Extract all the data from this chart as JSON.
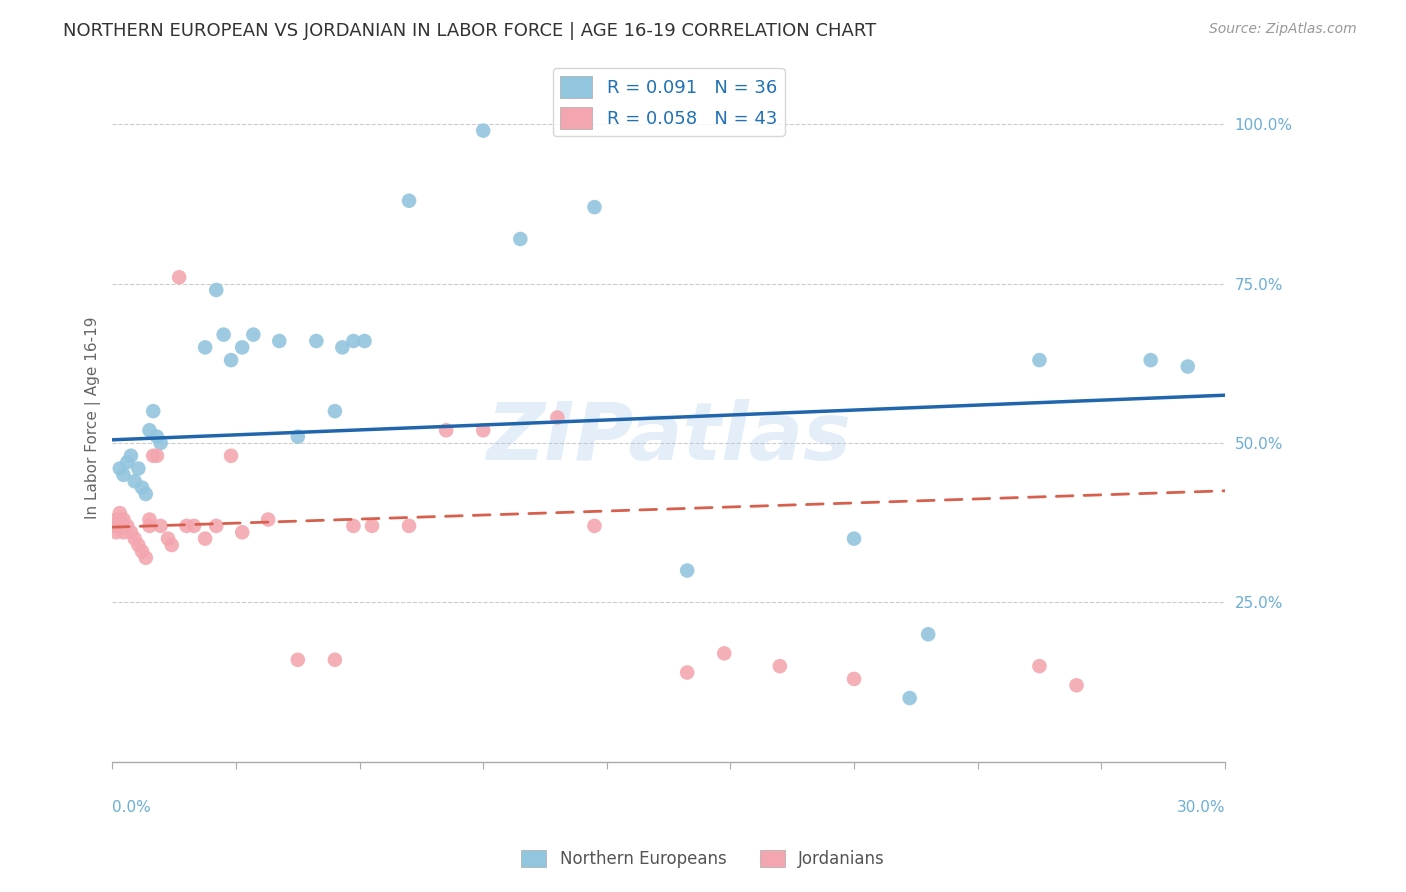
{
  "title": "NORTHERN EUROPEAN VS JORDANIAN IN LABOR FORCE | AGE 16-19 CORRELATION CHART",
  "source": "Source: ZipAtlas.com",
  "ylabel": "In Labor Force | Age 16-19",
  "right_ytick_vals": [
    1.0,
    0.75,
    0.5,
    0.25
  ],
  "xmin": 0.0,
  "xmax": 0.3,
  "ymin": 0.0,
  "ymax": 1.08,
  "blue_color": "#92c5de",
  "pink_color": "#f4a6b0",
  "blue_line_color": "#2166ac",
  "pink_line_color": "#d6604d",
  "watermark": "ZIPatlas",
  "ne_x": [
    0.002,
    0.003,
    0.004,
    0.005,
    0.006,
    0.007,
    0.008,
    0.009,
    0.01,
    0.011,
    0.012,
    0.013,
    0.025,
    0.028,
    0.03,
    0.032,
    0.035,
    0.038,
    0.045,
    0.05,
    0.055,
    0.06,
    0.062,
    0.065,
    0.068,
    0.08,
    0.1,
    0.11,
    0.13,
    0.155,
    0.2,
    0.215,
    0.22,
    0.25,
    0.28,
    0.29
  ],
  "ne_y": [
    0.46,
    0.45,
    0.47,
    0.48,
    0.44,
    0.46,
    0.43,
    0.42,
    0.52,
    0.55,
    0.51,
    0.5,
    0.65,
    0.74,
    0.67,
    0.63,
    0.65,
    0.67,
    0.66,
    0.51,
    0.66,
    0.55,
    0.65,
    0.66,
    0.66,
    0.88,
    0.99,
    0.82,
    0.87,
    0.3,
    0.35,
    0.1,
    0.2,
    0.63,
    0.63,
    0.62
  ],
  "jo_x": [
    0.001,
    0.001,
    0.001,
    0.002,
    0.002,
    0.003,
    0.003,
    0.004,
    0.005,
    0.006,
    0.007,
    0.008,
    0.009,
    0.01,
    0.01,
    0.011,
    0.012,
    0.013,
    0.015,
    0.016,
    0.018,
    0.02,
    0.022,
    0.025,
    0.028,
    0.032,
    0.035,
    0.042,
    0.05,
    0.06,
    0.065,
    0.07,
    0.08,
    0.09,
    0.1,
    0.12,
    0.13,
    0.155,
    0.165,
    0.18,
    0.2,
    0.25,
    0.26
  ],
  "jo_y": [
    0.38,
    0.37,
    0.36,
    0.39,
    0.38,
    0.38,
    0.36,
    0.37,
    0.36,
    0.35,
    0.34,
    0.33,
    0.32,
    0.38,
    0.37,
    0.48,
    0.48,
    0.37,
    0.35,
    0.34,
    0.76,
    0.37,
    0.37,
    0.35,
    0.37,
    0.48,
    0.36,
    0.38,
    0.16,
    0.16,
    0.37,
    0.37,
    0.37,
    0.52,
    0.52,
    0.54,
    0.37,
    0.14,
    0.17,
    0.15,
    0.13,
    0.15,
    0.12
  ],
  "ne_line_x0": 0.0,
  "ne_line_y0": 0.505,
  "ne_line_x1": 0.3,
  "ne_line_y1": 0.575,
  "jo_line_x0": 0.0,
  "jo_line_y0": 0.368,
  "jo_line_x1": 0.3,
  "jo_line_y1": 0.425
}
